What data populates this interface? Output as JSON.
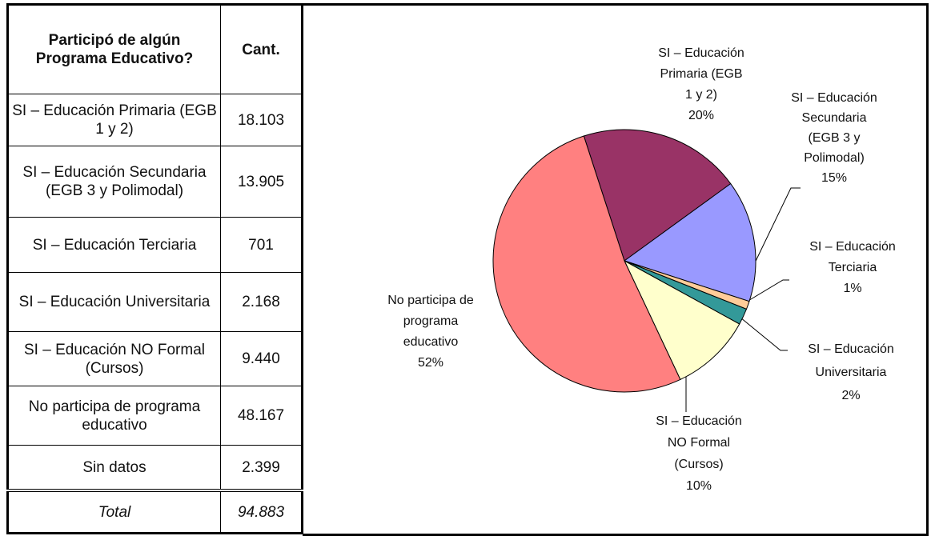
{
  "table": {
    "header": [
      "Participó de algún Programa Educativo?",
      "Cant."
    ],
    "rows": [
      [
        "SI – Educación Primaria (EGB 1 y 2)",
        "18.103"
      ],
      [
        "SI – Educación Secundaria (EGB 3 y Polimodal)",
        "13.905"
      ],
      [
        "SI – Educación Terciaria",
        "701"
      ],
      [
        "SI – Educación Universitaria",
        "2.168"
      ],
      [
        "SI – Educación NO Formal (Cursos)",
        "9.440"
      ],
      [
        "No participa de programa educativo",
        "48.167"
      ],
      [
        "Sin datos",
        "2.399"
      ]
    ],
    "total": [
      "Total",
      "94.883"
    ]
  },
  "chart_data": {
    "type": "pie",
    "categories": [
      [
        "SI – Educación",
        "Primaria (EGB",
        "1 y 2)"
      ],
      [
        "SI – Educación",
        "Secundaria",
        "(EGB 3 y",
        "Polimodal)"
      ],
      [
        "SI – Educación",
        "Terciaria"
      ],
      [
        "SI – Educación",
        "Universitaria"
      ],
      [
        "SI – Educación",
        "NO Formal",
        "(Cursos)"
      ],
      [
        "No participa de",
        "programa",
        "educativo"
      ]
    ],
    "values": [
      20,
      15,
      1,
      2,
      10,
      52
    ],
    "value_labels": [
      "20%",
      "15%",
      "1%",
      "2%",
      "10%",
      "52%"
    ],
    "colors": [
      "#993366",
      "#9999ff",
      "#ffcc99",
      "#339999",
      "#ffffcc",
      "#ff8080"
    ]
  }
}
